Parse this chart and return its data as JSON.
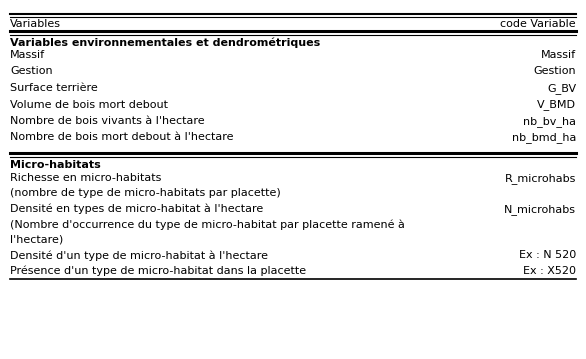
{
  "header": [
    "Variables",
    "code Variable"
  ],
  "section1_title": "Variables environnementales et dendrométriques",
  "section1_rows": [
    [
      "Massif",
      "Massif"
    ],
    [
      "Gestion",
      "Gestion"
    ],
    [
      "Surface terrière",
      "G_BV"
    ],
    [
      "Volume de bois mort debout",
      "V_BMD"
    ],
    [
      "Nombre de bois vivants à l'hectare",
      "nb_bv_ha"
    ],
    [
      "Nombre de bois mort debout à l'hectare",
      "nb_bmd_ha"
    ]
  ],
  "section2_title": "Micro-habitats",
  "section2_rows": [
    [
      "Richesse en micro-habitats",
      "R_microhabs"
    ],
    [
      "(nombre de type de micro-habitats par placette)",
      ""
    ],
    [
      "Densité en types de micro-habitat à l'hectare",
      "N_microhabs"
    ],
    [
      "(Nombre d'occurrence du type de micro-habitat par placette ramené à",
      ""
    ],
    [
      "l'hectare)",
      ""
    ],
    [
      "Densité d'un type de micro-habitat à l'hectare",
      "Ex : N 520"
    ],
    [
      "Présence d'un type de micro-habitat dans la placette",
      "Ex : X520"
    ]
  ],
  "bg_color": "#ffffff",
  "text_color": "#000000",
  "fontsize": 8,
  "bold_fontsize": 8,
  "header_fontsize": 8
}
